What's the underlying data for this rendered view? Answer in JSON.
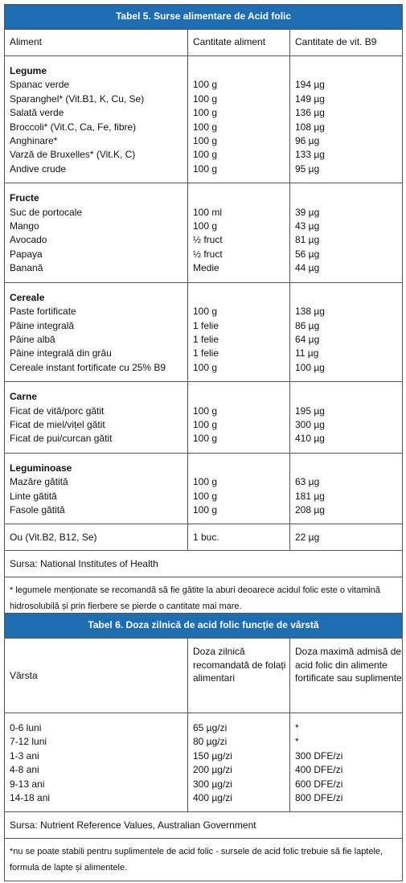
{
  "table5": {
    "title": "Tabel 5. Surse alimentare de Acid folic",
    "headers": [
      "Aliment",
      "Cantitate aliment",
      "Cantitate de vit. B9"
    ],
    "groups": [
      {
        "name": "Legume",
        "rows": [
          [
            "Spanac verde",
            "100 g",
            "194 µg"
          ],
          [
            "Sparanghel* (Vit.B1, K, Cu, Se)",
            "100 g",
            "149 µg"
          ],
          [
            "Salată verde",
            "100 g",
            "136 µg"
          ],
          [
            "Broccoli* (Vit.C, Ca, Fe, fibre)",
            "100 g",
            "108 µg"
          ],
          [
            "Anghinare*",
            "100 g",
            "96 µg"
          ],
          [
            "Varză de Bruxelles* (Vit.K, C)",
            "100 g",
            "133 µg"
          ],
          [
            "Andive crude",
            "100 g",
            "95 µg"
          ]
        ]
      },
      {
        "name": "Fructe",
        "rows": [
          [
            "Suc de portocale",
            "100 ml",
            "39 µg"
          ],
          [
            "Mango",
            "100 g",
            "43 µg"
          ],
          [
            "Avocado",
            "½ fruct",
            "81 µg"
          ],
          [
            "Papaya",
            "½ fruct",
            "56 µg"
          ],
          [
            "Banană",
            "Medie",
            "44 µg"
          ]
        ]
      },
      {
        "name": "Cereale",
        "rows": [
          [
            "Paste fortificate",
            "100 g",
            "138 µg"
          ],
          [
            "Pâine integrală",
            "1 felie",
            "86 µg"
          ],
          [
            "Pâine albă",
            "1 felie",
            "64 µg"
          ],
          [
            "Pâine integrală din grâu",
            "1 felie",
            "11 µg"
          ],
          [
            "Cereale instant fortificate cu 25% B9",
            "100 g",
            "100 µg"
          ]
        ]
      },
      {
        "name": "Carne",
        "rows": [
          [
            "Ficat de vită/porc gătit",
            "100 g",
            "195 µg"
          ],
          [
            "Ficat de miel/vițel gătit",
            "100 g",
            "300 µg"
          ],
          [
            "Ficat de pui/curcan gătit",
            "100 g",
            "410 µg"
          ]
        ]
      },
      {
        "name": "Leguminoase",
        "rows": [
          [
            "Mazăre gătită",
            "100 g",
            "63 µg"
          ],
          [
            "Linte gătită",
            "100 g",
            "181 µg"
          ],
          [
            "Fasole gătită",
            "100 g",
            "208 µg"
          ]
        ]
      }
    ],
    "rows": [
      [
        "Ou (Vit.B2, B12, Se)",
        "1 buc.",
        "22 µg"
      ]
    ],
    "source": "Sursa: National Institutes of Health",
    "note": "* legumele menționate se recomandă să fie gătite la aburi deoarece acidul folic este o vitamină hidrosolubilă și prin fierbere se pierde o cantitate mai mare."
  },
  "table6": {
    "title": "Tabel 6. Doza zilnică de acid folic funcție de vârstă",
    "headers": [
      "Vârsta",
      "Doza zilnică recomandată de folați alimentari",
      "Doza maximă admisă de acid folic din alimente fortificate sau suplimente"
    ],
    "rows": [
      [
        "0-6 luni",
        "65 µg/zi",
        "*"
      ],
      [
        "7-12 luni",
        "80 µg/zi",
        "*"
      ],
      [
        "1-3 ani",
        "150 µg/zi",
        "300 DFE/zi"
      ],
      [
        "4-8 ani",
        "200 µg/zi",
        "400 DFE/zi"
      ],
      [
        "9-13 ani",
        "300 µg/zi",
        "600 DFE/zi"
      ],
      [
        "14-18 ani",
        "400 µg/zi",
        "800 DFE/zi"
      ]
    ],
    "source": "Sursa: Nutrient Reference Values, Australian Government",
    "note": "*nu se poate stabili pentru suplimentele de acid folic - sursele de acid folic trebuie să fie laptele, formula de lapte și alimentele."
  }
}
